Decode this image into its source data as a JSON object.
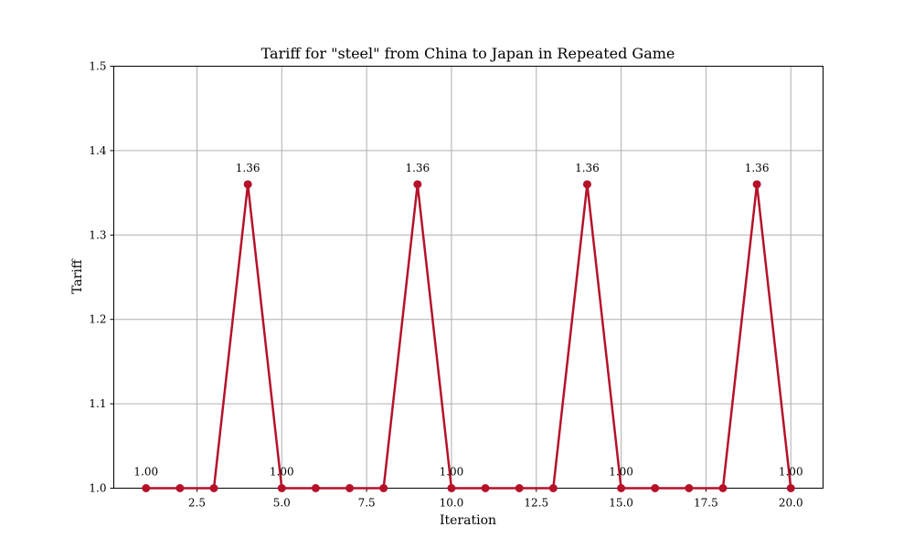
{
  "chart_data": {
    "type": "line",
    "title": "Tariff for \"steel\" from China to Japan in Repeated Game",
    "xlabel": "Iteration",
    "ylabel": "Tariff",
    "xlim": [
      0.05,
      20.95
    ],
    "ylim": [
      1.0,
      1.5
    ],
    "xticks": [
      2.5,
      5.0,
      7.5,
      10.0,
      12.5,
      15.0,
      17.5,
      20.0
    ],
    "xtick_labels": [
      "2.5",
      "5.0",
      "7.5",
      "10.0",
      "12.5",
      "15.0",
      "17.5",
      "20.0"
    ],
    "yticks": [
      1.0,
      1.1,
      1.2,
      1.3,
      1.4,
      1.5
    ],
    "ytick_labels": [
      "1.0",
      "1.1",
      "1.2",
      "1.3",
      "1.4",
      "1.5"
    ],
    "grid": true,
    "series": [
      {
        "color": "#b5122a",
        "x": [
          1,
          2,
          3,
          4,
          5,
          6,
          7,
          8,
          9,
          10,
          11,
          12,
          13,
          14,
          15,
          16,
          17,
          18,
          19,
          20
        ],
        "y": [
          1.0,
          1.0,
          1.0,
          1.36,
          1.0,
          1.0,
          1.0,
          1.0,
          1.36,
          1.0,
          1.0,
          1.0,
          1.0,
          1.36,
          1.0,
          1.0,
          1.0,
          1.0,
          1.36,
          1.0
        ]
      }
    ],
    "annotations": [
      {
        "x": 1,
        "y": 1.0,
        "text": "1.00"
      },
      {
        "x": 4,
        "y": 1.36,
        "text": "1.36"
      },
      {
        "x": 5,
        "y": 1.0,
        "text": "1.00"
      },
      {
        "x": 9,
        "y": 1.36,
        "text": "1.36"
      },
      {
        "x": 10,
        "y": 1.0,
        "text": "1.00"
      },
      {
        "x": 14,
        "y": 1.36,
        "text": "1.36"
      },
      {
        "x": 15,
        "y": 1.0,
        "text": "1.00"
      },
      {
        "x": 19,
        "y": 1.36,
        "text": "1.36"
      },
      {
        "x": 20,
        "y": 1.0,
        "text": "1.00"
      }
    ]
  }
}
